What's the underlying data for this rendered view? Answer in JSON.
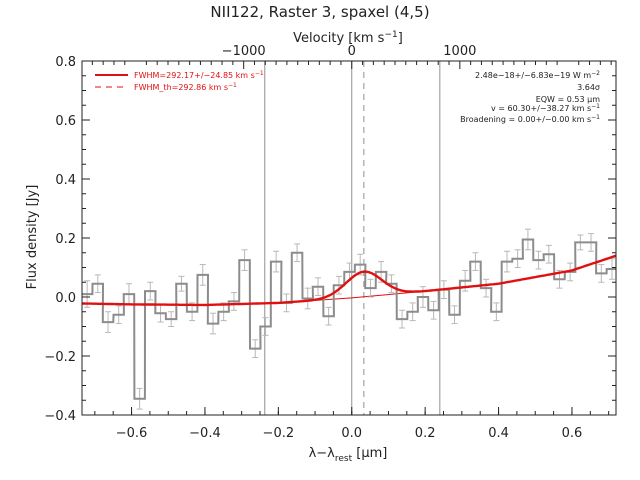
{
  "chart_data": {
    "type": "line",
    "title": "NII122, Raster 3, spaxel (4,5)",
    "xlabel": "λ−λrest [μm]",
    "xlabel_parts": {
      "main": "λ−λ",
      "sub": "rest",
      "unit_open": " [",
      "unit_mu": "μ",
      "unit_close": "m]"
    },
    "ylabel": "Flux density [Jy]",
    "top_axis_label": "Velocity [km s−1]",
    "top_axis_parts": {
      "main": "Velocity [km s",
      "sup": "−1",
      "close": "]"
    },
    "xlim": [
      -0.735,
      0.72
    ],
    "ylim": [
      -0.4,
      0.8
    ],
    "x_ticks": [
      -0.6,
      -0.4,
      -0.2,
      0.0,
      0.2,
      0.4,
      0.6
    ],
    "x_tick_labels": [
      "−0.6",
      "−0.4",
      "−0.2",
      "0.0",
      "0.2",
      "0.4",
      "0.6"
    ],
    "y_ticks": [
      -0.4,
      -0.2,
      0.0,
      0.2,
      0.4,
      0.6,
      0.8
    ],
    "y_tick_labels": [
      "−0.4",
      "−0.2",
      "0.0",
      "0.2",
      "0.4",
      "0.6",
      "0.8"
    ],
    "top_ticks": [
      -1000,
      0,
      1000
    ],
    "top_tick_labels": [
      "−1000",
      "0",
      "1000"
    ],
    "top_tick_positions_x": [
      -0.2945,
      0.0,
      0.2945
    ],
    "vertical_lines_x": [
      -0.237,
      0.0,
      0.24
    ],
    "dashed_line_x": 0.033,
    "legend": [
      {
        "text": "FWHM=292.17+/−24.85 km s",
        "sup": "−1",
        "style": "solid",
        "color": "#e01010"
      },
      {
        "text": "FWHM_th=292.86 km s",
        "sup": "−1",
        "style": "dashed",
        "color": "#e01010"
      }
    ],
    "annotations": [
      {
        "text": "2.48e−18+/−6.83e−19 W m",
        "sup": "−2"
      },
      {
        "text": "3.64σ",
        "sup": ""
      },
      {
        "text": "EQW = 0.53 μm",
        "sup": ""
      },
      {
        "text": "v = 60.30+/−38.27 km s",
        "sup": "−1"
      },
      {
        "text": "Broadening = 0.00+/−0.00 km s",
        "sup": "−1"
      }
    ],
    "spectrum": {
      "name": "data",
      "color": "#8c8c8c",
      "bin_width": 0.0286,
      "x": [
        -0.721,
        -0.692,
        -0.664,
        -0.635,
        -0.607,
        -0.578,
        -0.549,
        -0.521,
        -0.492,
        -0.464,
        -0.435,
        -0.406,
        -0.378,
        -0.349,
        -0.321,
        -0.292,
        -0.263,
        -0.235,
        -0.206,
        -0.178,
        -0.149,
        -0.12,
        -0.092,
        -0.063,
        -0.035,
        -0.006,
        0.023,
        0.051,
        0.08,
        0.108,
        0.137,
        0.166,
        0.194,
        0.223,
        0.251,
        0.28,
        0.309,
        0.337,
        0.366,
        0.394,
        0.423,
        0.452,
        0.48,
        0.509,
        0.537,
        0.566,
        0.595,
        0.623,
        0.652,
        0.68,
        0.709
      ],
      "y": [
        0.01,
        0.045,
        -0.085,
        -0.06,
        0.01,
        -0.345,
        0.02,
        -0.055,
        -0.075,
        0.045,
        -0.05,
        0.075,
        -0.09,
        -0.05,
        -0.015,
        0.125,
        -0.175,
        -0.1,
        0.12,
        -0.02,
        0.15,
        -0.005,
        0.035,
        -0.065,
        0.04,
        0.085,
        0.11,
        0.03,
        0.085,
        0.045,
        -0.075,
        -0.05,
        0.0,
        -0.045,
        0.025,
        -0.06,
        0.055,
        0.12,
        0.03,
        -0.05,
        0.12,
        0.13,
        0.195,
        0.125,
        0.145,
        0.06,
        0.085,
        0.185,
        0.185,
        0.08,
        0.095
      ],
      "err": [
        0.045,
        0.03,
        0.035,
        0.03,
        0.035,
        0.035,
        0.03,
        0.03,
        0.025,
        0.025,
        0.03,
        0.035,
        0.035,
        0.03,
        0.03,
        0.035,
        0.03,
        0.03,
        0.035,
        0.03,
        0.03,
        0.035,
        0.03,
        0.03,
        0.03,
        0.03,
        0.035,
        0.03,
        0.035,
        0.03,
        0.03,
        0.03,
        0.035,
        0.03,
        0.03,
        0.03,
        0.035,
        0.03,
        0.03,
        0.03,
        0.035,
        0.03,
        0.035,
        0.03,
        0.03,
        0.03,
        0.03,
        0.025,
        0.03,
        0.03,
        0.035
      ]
    },
    "continuum": {
      "name": "continuum fit",
      "color": "#e01010",
      "x": [
        -0.735,
        -0.6,
        -0.4,
        -0.2,
        0.0,
        0.2,
        0.4,
        0.6,
        0.72
      ],
      "y": [
        -0.022,
        -0.025,
        -0.027,
        -0.02,
        -0.003,
        0.02,
        0.045,
        0.09,
        0.14
      ]
    },
    "gaussian_line": {
      "name": "line fit",
      "center": 0.033,
      "amplitude": 0.085,
      "sigma": 0.049
    }
  }
}
